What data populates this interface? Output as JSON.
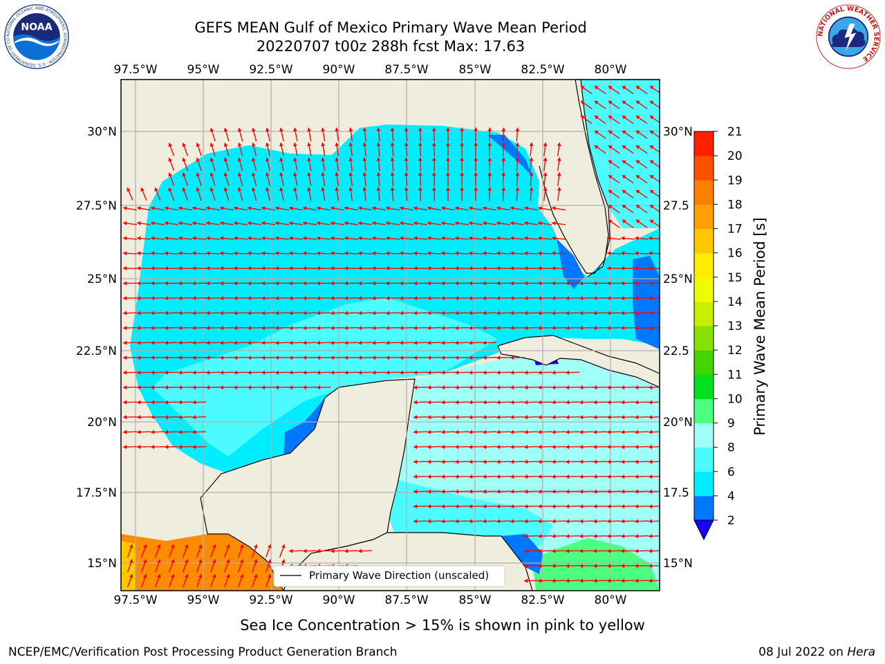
{
  "header": {
    "title_line1": "GEFS MEAN Gulf of Mexico Primary Wave Mean Period",
    "title_line2": "20220707 t00z 288h fcst   Max: 17.63"
  },
  "logos": {
    "left": "noaa-logo",
    "left_text": "NOAA",
    "left_ring_text": "NATIONAL OCEANIC AND ATMOSPHERIC ADMINISTRATION · U.S. DEPARTMENT OF COMMERCE",
    "right": "nws-logo",
    "right_ring_text": "NATIONAL WEATHER SERVICE"
  },
  "chart_data": {
    "type": "heatmap",
    "variable": "Primary Wave Mean Period",
    "max_value": 17.63,
    "map": {
      "lon_range": [
        -98,
        -78
      ],
      "lat_range": [
        14,
        31.8
      ],
      "lon_ticks": [
        "97.5°W",
        "95°W",
        "92.5°W",
        "90°W",
        "87.5°W",
        "85°W",
        "82.5°W",
        "80°W"
      ],
      "lat_ticks_left": [
        "30°N",
        "27.5°N",
        "25°N",
        "22.5°N",
        "20°N",
        "17.5°N",
        "15°N"
      ],
      "lat_ticks_right": [
        "30°N",
        "27.5",
        "25°N",
        "22.5",
        "20°N",
        "17.5",
        "15°N"
      ],
      "grid": true
    },
    "colorbar": {
      "label": "Primary Wave Mean Period [s]",
      "levels": [
        2,
        4,
        6,
        8,
        9,
        10,
        11,
        12,
        13,
        14,
        15,
        16,
        17,
        18,
        19,
        20,
        21
      ],
      "tick_labels": [
        "2",
        "4",
        "6",
        "8",
        "9",
        "10",
        "11",
        "12",
        "13",
        "14",
        "15",
        "16",
        "17",
        "18",
        "19",
        "20",
        "21"
      ],
      "colors": [
        "#0077ff",
        "#00ecff",
        "#4cfbff",
        "#a0fff7",
        "#4cff80",
        "#00e020",
        "#44d400",
        "#88e000",
        "#c8ee00",
        "#eefc00",
        "#ffec00",
        "#ffc800",
        "#ffa000",
        "#ff8000",
        "#ff5000",
        "#ff2000"
      ],
      "extend_min_color": "#1800ff"
    },
    "legend": {
      "label": "Primary Wave Direction (unscaled)",
      "placement": "bottom"
    },
    "colors": {
      "land": "#efedde",
      "arrow": "#ff0000",
      "grid": "#b0b0b0"
    }
  },
  "footer": {
    "note": "Sea Ice Concentration > 15% is shown in pink to yellow",
    "left": "NCEP/EMC/Verification Post Processing Product Generation Branch",
    "right_date": "08 Jul 2022 on ",
    "right_host": "Hera"
  }
}
